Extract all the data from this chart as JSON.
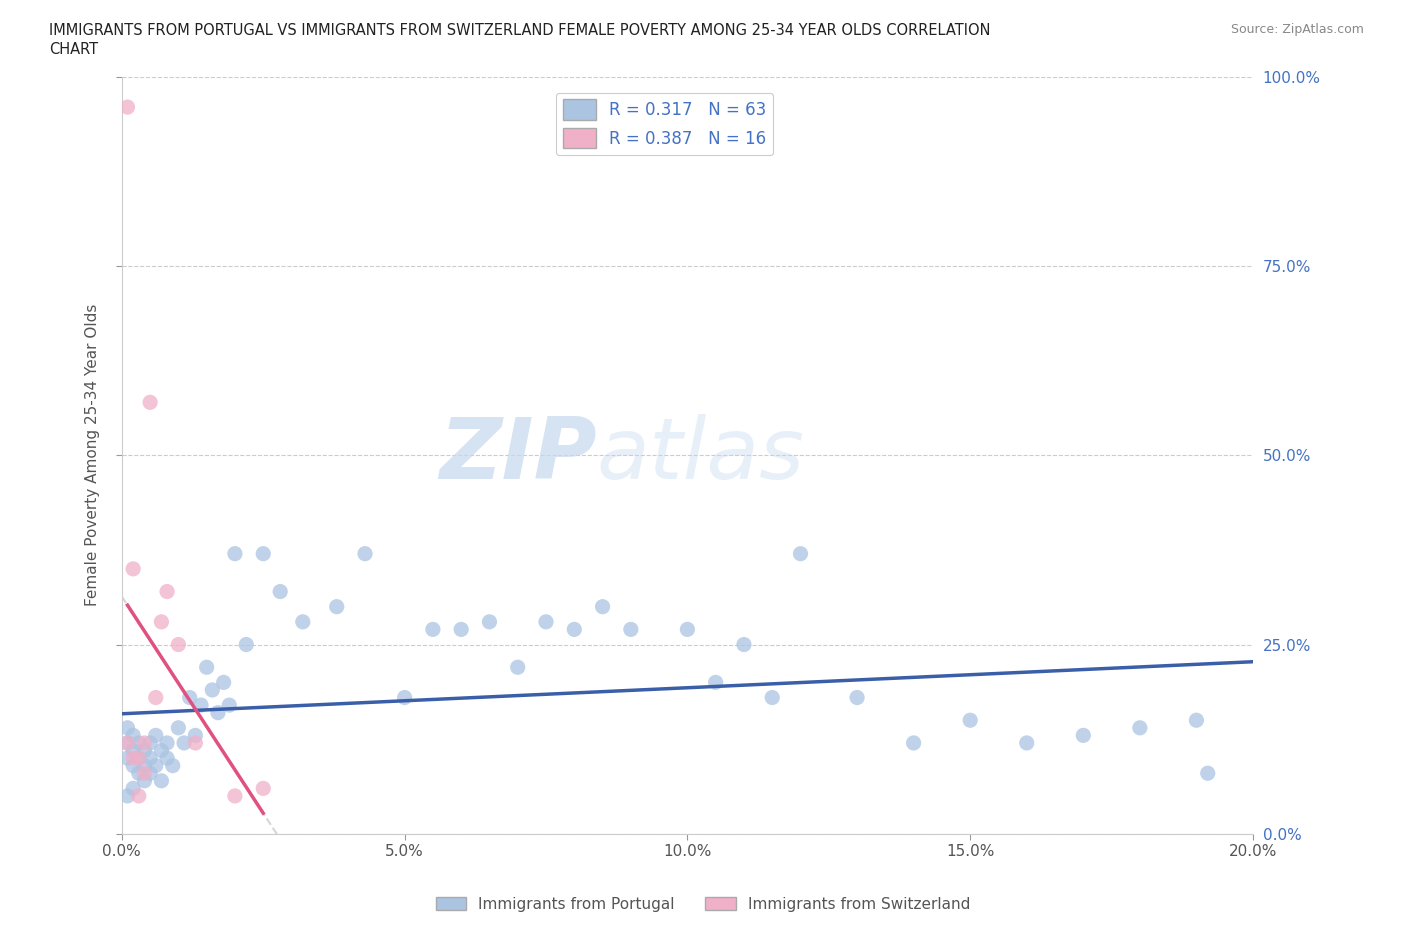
{
  "title_line1": "IMMIGRANTS FROM PORTUGAL VS IMMIGRANTS FROM SWITZERLAND FEMALE POVERTY AMONG 25-34 YEAR OLDS CORRELATION",
  "title_line2": "CHART",
  "source_text": "Source: ZipAtlas.com",
  "ylabel": "Female Poverty Among 25-34 Year Olds",
  "xlim": [
    0.0,
    0.2
  ],
  "ylim": [
    0.0,
    1.0
  ],
  "xticks": [
    0.0,
    0.05,
    0.1,
    0.15,
    0.2
  ],
  "xtick_labels": [
    "0.0%",
    "5.0%",
    "10.0%",
    "15.0%",
    "20.0%"
  ],
  "yticks": [
    0.0,
    0.25,
    0.5,
    0.75,
    1.0
  ],
  "ytick_labels": [
    "0.0%",
    "25.0%",
    "50.0%",
    "75.0%",
    "100.0%"
  ],
  "portugal_color": "#aac4e2",
  "switzerland_color": "#f0b0c8",
  "trend_portugal_color": "#3a5fa8",
  "trend_switzerland_color": "#e05080",
  "trend_switzerland_dashed_color": "#cccccc",
  "R_portugal": 0.317,
  "N_portugal": 63,
  "R_switzerland": 0.387,
  "N_switzerland": 16,
  "watermark_zip": "ZIP",
  "watermark_atlas": "atlas",
  "watermark_color_zip": "#c5d8ee",
  "watermark_color_atlas": "#c5d8ee",
  "legend_label_portugal": "Immigrants from Portugal",
  "legend_label_switzerland": "Immigrants from Switzerland",
  "portugal_x": [
    0.001,
    0.001,
    0.001,
    0.002,
    0.002,
    0.002,
    0.003,
    0.003,
    0.003,
    0.004,
    0.004,
    0.004,
    0.005,
    0.005,
    0.005,
    0.006,
    0.006,
    0.007,
    0.007,
    0.008,
    0.008,
    0.009,
    0.01,
    0.011,
    0.012,
    0.013,
    0.014,
    0.015,
    0.016,
    0.017,
    0.018,
    0.019,
    0.02,
    0.022,
    0.025,
    0.028,
    0.032,
    0.038,
    0.043,
    0.05,
    0.055,
    0.06,
    0.065,
    0.07,
    0.075,
    0.08,
    0.085,
    0.09,
    0.1,
    0.105,
    0.11,
    0.115,
    0.12,
    0.13,
    0.14,
    0.15,
    0.16,
    0.17,
    0.18,
    0.19,
    0.192,
    0.001,
    0.002
  ],
  "portugal_y": [
    0.14,
    0.12,
    0.1,
    0.13,
    0.11,
    0.09,
    0.12,
    0.1,
    0.08,
    0.11,
    0.09,
    0.07,
    0.12,
    0.1,
    0.08,
    0.13,
    0.09,
    0.11,
    0.07,
    0.12,
    0.1,
    0.09,
    0.14,
    0.12,
    0.18,
    0.13,
    0.17,
    0.22,
    0.19,
    0.16,
    0.2,
    0.17,
    0.37,
    0.25,
    0.37,
    0.32,
    0.28,
    0.3,
    0.37,
    0.18,
    0.27,
    0.27,
    0.28,
    0.22,
    0.28,
    0.27,
    0.3,
    0.27,
    0.27,
    0.2,
    0.25,
    0.18,
    0.37,
    0.18,
    0.12,
    0.15,
    0.12,
    0.13,
    0.14,
    0.15,
    0.08,
    0.05,
    0.06
  ],
  "switzerland_x": [
    0.001,
    0.001,
    0.002,
    0.002,
    0.003,
    0.003,
    0.004,
    0.004,
    0.005,
    0.006,
    0.007,
    0.008,
    0.01,
    0.013,
    0.02,
    0.025
  ],
  "switzerland_y": [
    0.96,
    0.12,
    0.35,
    0.1,
    0.1,
    0.05,
    0.12,
    0.08,
    0.57,
    0.18,
    0.28,
    0.32,
    0.25,
    0.12,
    0.05,
    0.06
  ],
  "dot_size": 120
}
